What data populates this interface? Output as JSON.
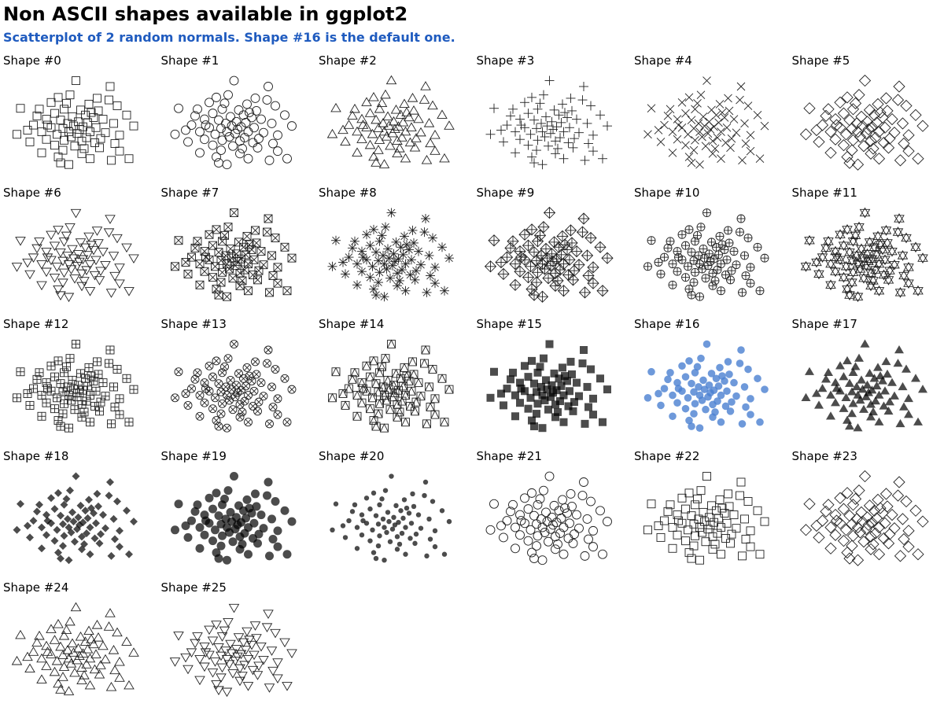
{
  "title": "Non ASCII shapes available in ggplot2",
  "subtitle": "Scatterplot of 2 random normals. Shape #16 is the default one.",
  "colors": {
    "default_point": "#4a7fd1",
    "point": "#000000",
    "subtitle": "#1f5bbf"
  },
  "chart_data": {
    "type": "scatter",
    "layout": "facet-grid",
    "ncol": 6,
    "highlighted_shape": 16,
    "facets": [
      {
        "label": "Shape #0",
        "shape": 0
      },
      {
        "label": "Shape #1",
        "shape": 1
      },
      {
        "label": "Shape #2",
        "shape": 2
      },
      {
        "label": "Shape #3",
        "shape": 3
      },
      {
        "label": "Shape #4",
        "shape": 4
      },
      {
        "label": "Shape #5",
        "shape": 5
      },
      {
        "label": "Shape #6",
        "shape": 6
      },
      {
        "label": "Shape #7",
        "shape": 7
      },
      {
        "label": "Shape #8",
        "shape": 8
      },
      {
        "label": "Shape #9",
        "shape": 9
      },
      {
        "label": "Shape #10",
        "shape": 10
      },
      {
        "label": "Shape #11",
        "shape": 11
      },
      {
        "label": "Shape #12",
        "shape": 12
      },
      {
        "label": "Shape #13",
        "shape": 13
      },
      {
        "label": "Shape #14",
        "shape": 14
      },
      {
        "label": "Shape #15",
        "shape": 15
      },
      {
        "label": "Shape #16",
        "shape": 16
      },
      {
        "label": "Shape #17",
        "shape": 17
      },
      {
        "label": "Shape #18",
        "shape": 18
      },
      {
        "label": "Shape #19",
        "shape": 19
      },
      {
        "label": "Shape #20",
        "shape": 20
      },
      {
        "label": "Shape #21",
        "shape": 21
      },
      {
        "label": "Shape #22",
        "shape": 22
      },
      {
        "label": "Shape #23",
        "shape": 23
      },
      {
        "label": "Shape #24",
        "shape": 24
      },
      {
        "label": "Shape #25",
        "shape": 25
      }
    ],
    "xlim": [
      -3,
      3
    ],
    "ylim": [
      -3,
      3
    ],
    "points": [
      [
        -0.05,
        2.6
      ],
      [
        1.4,
        2.25
      ],
      [
        -0.3,
        1.75
      ],
      [
        -0.8,
        1.6
      ],
      [
        -1.1,
        1.3
      ],
      [
        0.5,
        1.2
      ],
      [
        1.7,
        1.1
      ],
      [
        -2.4,
        0.95
      ],
      [
        -1.6,
        0.9
      ],
      [
        -0.55,
        0.9
      ],
      [
        0.15,
        0.85
      ],
      [
        0.9,
        0.8
      ],
      [
        -0.95,
        0.65
      ],
      [
        0.35,
        0.55
      ],
      [
        -0.2,
        0.45
      ],
      [
        0.7,
        0.4
      ],
      [
        -1.3,
        0.3
      ],
      [
        1.1,
        0.3
      ],
      [
        -0.7,
        0.25
      ],
      [
        0.05,
        0.15
      ],
      [
        0.45,
        0.1
      ],
      [
        -0.4,
        0.05
      ],
      [
        1.55,
        0.05
      ],
      [
        -1.85,
        -0.05
      ],
      [
        -0.15,
        -0.1
      ],
      [
        0.25,
        -0.15
      ],
      [
        0.8,
        -0.2
      ],
      [
        -1.1,
        -0.2
      ],
      [
        -0.6,
        -0.25
      ],
      [
        0.1,
        -0.3
      ],
      [
        2.4,
        -0.1
      ],
      [
        -2.1,
        -0.35
      ],
      [
        -1.5,
        -0.45
      ],
      [
        -0.35,
        -0.45
      ],
      [
        0.55,
        -0.45
      ],
      [
        1.2,
        -0.5
      ],
      [
        0.0,
        -0.55
      ],
      [
        -0.85,
        -0.6
      ],
      [
        1.8,
        -0.65
      ],
      [
        -0.25,
        -0.75
      ],
      [
        0.4,
        -0.8
      ],
      [
        1.0,
        -0.85
      ],
      [
        -1.3,
        -0.9
      ],
      [
        -0.55,
        -0.95
      ],
      [
        0.2,
        -1.0
      ],
      [
        -2.0,
        -1.05
      ],
      [
        0.75,
        -1.1
      ],
      [
        1.6,
        -1.15
      ],
      [
        -0.95,
        -1.25
      ],
      [
        -0.1,
        -1.3
      ],
      [
        0.95,
        -1.4
      ],
      [
        -0.6,
        -1.55
      ],
      [
        1.8,
        -1.6
      ],
      [
        -1.5,
        -1.7
      ],
      [
        0.2,
        -1.75
      ],
      [
        0.55,
        -2.05
      ],
      [
        1.45,
        -2.15
      ],
      [
        -0.7,
        -2.3
      ],
      [
        -0.35,
        -2.4
      ],
      [
        2.2,
        -2.05
      ],
      [
        0.6,
        0.7
      ],
      [
        -1.7,
        0.5
      ],
      [
        1.35,
        1.45
      ],
      [
        -0.45,
        1.25
      ],
      [
        0.85,
        1.55
      ],
      [
        -1.25,
        -0.05
      ],
      [
        2.1,
        0.55
      ],
      [
        -2.55,
        -0.6
      ],
      [
        0.3,
        -1.45
      ],
      [
        -0.8,
        -1.95
      ]
    ]
  }
}
